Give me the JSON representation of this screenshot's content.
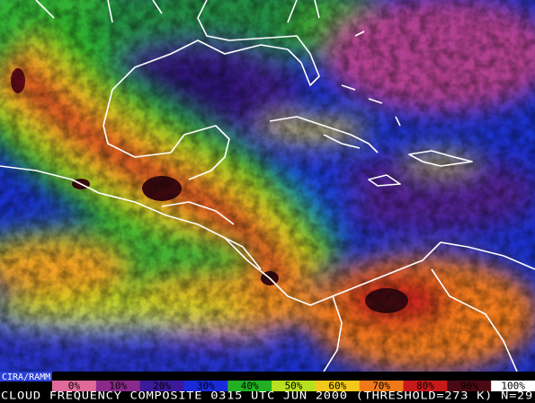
{
  "credit": "CIRA/RAMM",
  "caption": "CLOUD FREQUENCY COMPOSITE 0315 UTC JUN 2000 (THRESHOLD=273 K) N=29",
  "legend": {
    "labels": [
      "0%",
      "10%",
      "20%",
      "30%",
      "40%",
      "50%",
      "60%",
      "70%",
      "80%",
      "90%",
      "100%"
    ],
    "colors": [
      "#e06a9a",
      "#8a2a8a",
      "#3a1a9a",
      "#1a2ad8",
      "#22b022",
      "#b8e020",
      "#f2c81a",
      "#f07a1a",
      "#c81a1a",
      "#4a0a14",
      "#ffffff"
    ]
  }
}
